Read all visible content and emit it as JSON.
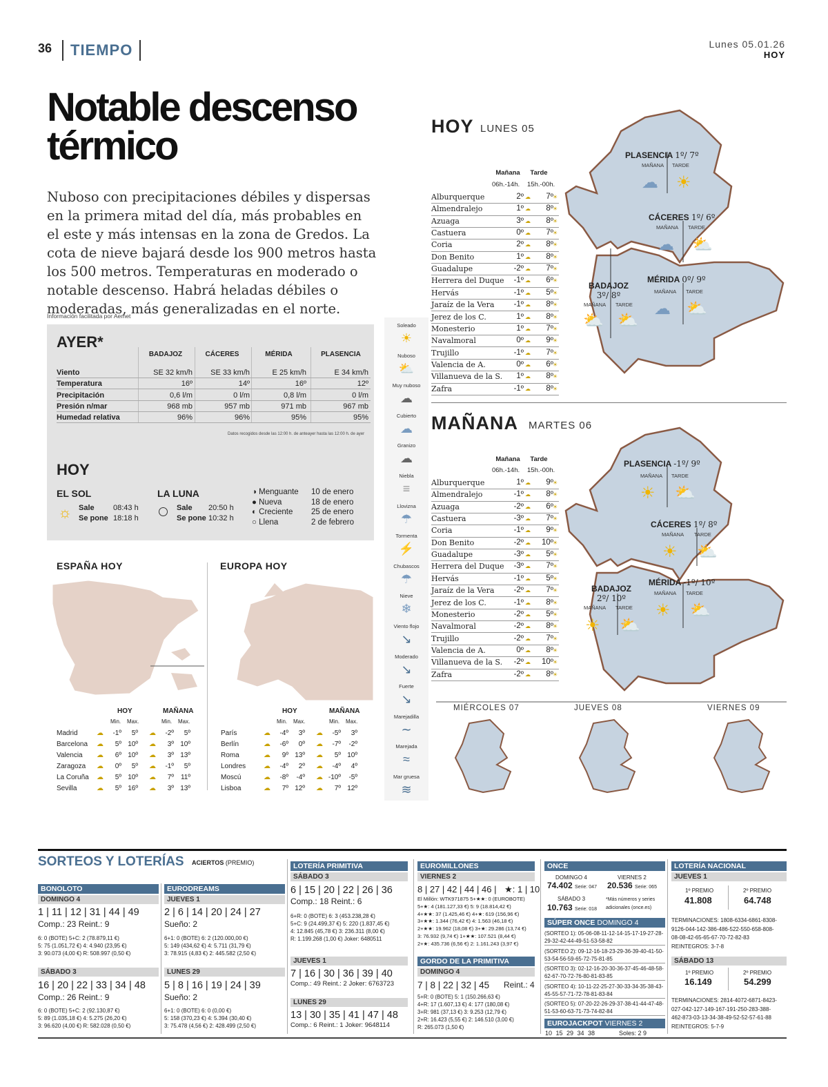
{
  "header": {
    "page": "36",
    "section": "TIEMPO",
    "date": "Lunes 05.01.26",
    "paper": "HOY"
  },
  "headline": {
    "line1": "Notable descenso",
    "line2": "térmico"
  },
  "lead": "Nuboso con precipitaciones débiles y dispersas en la primera mitad del día, más probables en el este y más intensas en la zona de Gredos. La cota de nieve bajará desde los 900 metros hasta los 500 metros. Temperaturas en moderado o notable descenso. Habrá heladas débiles o moderadas, más generalizadas en el norte.",
  "credit": "Información facilitada por Aemet",
  "ayer": {
    "title": "AYER*",
    "cities": [
      "BADAJOZ",
      "CÁCERES",
      "MÉRIDA",
      "PLASENCIA"
    ],
    "rows": [
      {
        "label": "Viento",
        "values": [
          "SE 32 km/h",
          "SE 33 km/h",
          "E 25 km/h",
          "E 34 km/h"
        ]
      },
      {
        "label": "Temperatura",
        "values": [
          "16º",
          "14º",
          "16º",
          "12º"
        ]
      },
      {
        "label": "Precipitación",
        "values": [
          "0,6 l/m",
          "0 l/m",
          "0,8 l/m",
          "0 l/m"
        ]
      },
      {
        "label": "Presión n/mar",
        "values": [
          "968 mb",
          "957 mb",
          "971 mb",
          "967 mb"
        ]
      },
      {
        "label": "Humedad relativa",
        "values": [
          "96%",
          "96%",
          "95%",
          "95%"
        ]
      }
    ],
    "note": "Datos recogidos desde las 12:00 h. de anteayer hasta las 12:00 h. de ayer"
  },
  "hoy_box": {
    "title": "HOY",
    "sol": {
      "title": "EL SOL",
      "sale_label": "Sale",
      "sale": "08:43 h",
      "pone_label": "Se pone",
      "pone": "18:18 h"
    },
    "luna": {
      "title": "LA LUNA",
      "sale_label": "Sale",
      "sale": "20:50 h",
      "pone_label": "Se pone",
      "pone": "10:32 h"
    },
    "phases": [
      {
        "name": "Menguante",
        "date": "10 de enero",
        "sym": "◑"
      },
      {
        "name": "Nueva",
        "date": "18 de enero",
        "sym": "●"
      },
      {
        "name": "Creciente",
        "date": "25 de enero",
        "sym": "◐"
      },
      {
        "name": "Llena",
        "date": "2 de febrero",
        "sym": "○"
      }
    ]
  },
  "espana": {
    "title": "ESPAÑA HOY",
    "hoy": "HOY",
    "manana": "MAÑANA",
    "min": "Min.",
    "max": "Max.",
    "cities": [
      {
        "name": "Madrid",
        "h": [
          "-1º",
          "5º"
        ],
        "m": [
          "-2º",
          "5º"
        ]
      },
      {
        "name": "Barcelona",
        "h": [
          "5º",
          "10º"
        ],
        "m": [
          "3º",
          "10º"
        ]
      },
      {
        "name": "Valencia",
        "h": [
          "6º",
          "10º"
        ],
        "m": [
          "3º",
          "13º"
        ]
      },
      {
        "name": "Zaragoza",
        "h": [
          "0º",
          "5º"
        ],
        "m": [
          "-1º",
          "5º"
        ]
      },
      {
        "name": "La Coruña",
        "h": [
          "5º",
          "10º"
        ],
        "m": [
          "7º",
          "11º"
        ]
      },
      {
        "name": "Sevilla",
        "h": [
          "5º",
          "16º"
        ],
        "m": [
          "3º",
          "13º"
        ]
      }
    ]
  },
  "europa": {
    "title": "EUROPA HOY",
    "hoy": "HOY",
    "manana": "MAÑANA",
    "min": "Min.",
    "max": "Max.",
    "cities": [
      {
        "name": "París",
        "h": [
          "-4º",
          "3º"
        ],
        "m": [
          "-5º",
          "3º"
        ]
      },
      {
        "name": "Berlín",
        "h": [
          "-6º",
          "0º"
        ],
        "m": [
          "-7º",
          "-2º"
        ]
      },
      {
        "name": "Roma",
        "h": [
          "9º",
          "13º"
        ],
        "m": [
          "5º",
          "10º"
        ]
      },
      {
        "name": "Londres",
        "h": [
          "-4º",
          "2º"
        ],
        "m": [
          "-4º",
          "4º"
        ]
      },
      {
        "name": "Moscú",
        "h": [
          "-8º",
          "-4º"
        ],
        "m": [
          "-10º",
          "-5º"
        ]
      },
      {
        "name": "Lisboa",
        "h": [
          "7º",
          "12º"
        ],
        "m": [
          "7º",
          "12º"
        ]
      }
    ]
  },
  "legend": [
    "Soleado",
    "Nuboso",
    "Muy nuboso",
    "Cubierto",
    "Granizo",
    "Niebla",
    "Llovizna",
    "Tormenta",
    "Chubascos",
    "Nieve",
    "Viento flojo",
    "Moderado",
    "Fuerte",
    "Marejadilla",
    "Marejada",
    "Mar gruesa"
  ],
  "hoy_fc": {
    "title": "HOY",
    "sub": "LUNES 05",
    "h1": "Mañana",
    "h2": "Tarde",
    "h1b": "06h.-14h.",
    "h2b": "15h.-00h.",
    "rows": [
      {
        "t": "Alburquerque",
        "m": "2º",
        "a": "7º"
      },
      {
        "t": "Almendralejo",
        "m": "1º",
        "a": "8º"
      },
      {
        "t": "Azuaga",
        "m": "3º",
        "a": "8º"
      },
      {
        "t": "Castuera",
        "m": "0º",
        "a": "7º"
      },
      {
        "t": "Coria",
        "m": "2º",
        "a": "8º"
      },
      {
        "t": "Don Benito",
        "m": "1º",
        "a": "8º"
      },
      {
        "t": "Guadalupe",
        "m": "-2º",
        "a": "7º"
      },
      {
        "t": "Herrera del Duque",
        "m": "-1º",
        "a": "6º"
      },
      {
        "t": "Hervás",
        "m": "-1º",
        "a": "5º"
      },
      {
        "t": "Jaraíz de la Vera",
        "m": "-1º",
        "a": "8º"
      },
      {
        "t": "Jerez de los C.",
        "m": "1º",
        "a": "8º"
      },
      {
        "t": "Monesterio",
        "m": "1º",
        "a": "7º"
      },
      {
        "t": "Navalmoral",
        "m": "0º",
        "a": "9º"
      },
      {
        "t": "Trujillo",
        "m": "-1º",
        "a": "7º"
      },
      {
        "t": "Valencia de A.",
        "m": "0º",
        "a": "6º"
      },
      {
        "t": "Villanueva de la S.",
        "m": "1º",
        "a": "8º"
      },
      {
        "t": "Zafra",
        "m": "-1º",
        "a": "8º"
      }
    ],
    "map": [
      {
        "city": "PLASENCIA",
        "temps": "1º/ 7º"
      },
      {
        "city": "CÁCERES",
        "temps": "1º/ 6º"
      },
      {
        "city": "BADAJOZ",
        "temps": "3º/ 8º"
      },
      {
        "city": "MÉRIDA",
        "temps": "0º/ 9º"
      }
    ]
  },
  "man_fc": {
    "title": "MAÑANA",
    "sub": "MARTES 06",
    "h1": "Mañana",
    "h2": "Tarde",
    "h1b": "06h.-14h.",
    "h2b": "15h.-00h.",
    "rows": [
      {
        "t": "Alburquerque",
        "m": "1º",
        "a": "9º"
      },
      {
        "t": "Almendralejo",
        "m": "-1º",
        "a": "8º"
      },
      {
        "t": "Azuaga",
        "m": "-2º",
        "a": "6º"
      },
      {
        "t": "Castuera",
        "m": "-3º",
        "a": "7º"
      },
      {
        "t": "Coria",
        "m": "-1º",
        "a": "9º"
      },
      {
        "t": "Don Benito",
        "m": "-2º",
        "a": "10º"
      },
      {
        "t": "Guadalupe",
        "m": "-3º",
        "a": "5º"
      },
      {
        "t": "Herrera del Duque",
        "m": "-3º",
        "a": "7º"
      },
      {
        "t": "Hervás",
        "m": "-1º",
        "a": "5º"
      },
      {
        "t": "Jaraíz de la Vera",
        "m": "-2º",
        "a": "7º"
      },
      {
        "t": "Jerez de los C.",
        "m": "-1º",
        "a": "8º"
      },
      {
        "t": "Monesterio",
        "m": "-2º",
        "a": "5º"
      },
      {
        "t": "Navalmoral",
        "m": "-2º",
        "a": "8º"
      },
      {
        "t": "Trujillo",
        "m": "-2º",
        "a": "7º"
      },
      {
        "t": "Valencia de A.",
        "m": "0º",
        "a": "8º"
      },
      {
        "t": "Villanueva de la S.",
        "m": "-2º",
        "a": "10º"
      },
      {
        "t": "Zafra",
        "m": "-2º",
        "a": "8º"
      }
    ],
    "map": [
      {
        "city": "PLASENCIA",
        "temps": "-1º/ 9º"
      },
      {
        "city": "CÁCERES",
        "temps": "1º/ 8º"
      },
      {
        "city": "BADAJOZ",
        "temps": "2º/ 10º"
      },
      {
        "city": "MÉRIDA",
        "temps": "-1º/ 10º"
      }
    ]
  },
  "map_labels": {
    "manana": "MAÑANA",
    "tarde": "TARDE"
  },
  "days": [
    "MIÉRCOLES 07",
    "JUEVES 08",
    "VIERNES 09"
  ],
  "lottery": {
    "title": "SORTEOS Y LOTERÍAS",
    "subtitle_a": "ACIERTOS",
    "subtitle_b": "(PREMIO)",
    "bonoloto": {
      "name": "BONOLOTO",
      "d1": "DOMINGO 4",
      "n1": "1 | 11 | 12 | 31 | 44 | 49",
      "c1": "Comp.: 23 Reint.: 9",
      "x1": [
        "6: 0 (BOTE) 5+C: 2 (78.879,11 €)",
        "5: 75 (1.051,72 €) 4: 4.940 (23,95 €)",
        "3: 90.073 (4,00 €) R: 508.997 (0,50 €)"
      ],
      "d2": "SÁBADO 3",
      "n2": "16 | 20 | 22 | 33 | 34 | 48",
      "c2": "Comp.: 26 Reint.: 9",
      "x2": [
        "6: 0 (BOTE) 5+C: 2 (92.130,87 €)",
        "5: 89 (1.035,18 €) 4: 5.275 (26,20 €)",
        "3: 96.620 (4,00 €) R: 582.028 (0,50 €)"
      ]
    },
    "eurodreams": {
      "name": "EURODREAMS",
      "d1": "JUEVES 1",
      "n1": "2 | 6 | 14 | 20 | 24 | 27",
      "c1": "Sueño: 2",
      "x1": [
        "6+1: 0 (BOTE) 6: 2 (120.000,00 €)",
        "5: 149 (434,62 €) 4: 5.711 (31,79 €)",
        "3: 78.915 (4,83 €) 2: 445.582 (2,50 €)"
      ],
      "d2": "LUNES 29",
      "n2": "5 | 8 | 16 | 19 | 24 | 39",
      "c2": "Sueño: 2",
      "x2": [
        "6+1: 0 (BOTE) 6: 0 (0,00 €)",
        "5: 158 (370,23 €) 4: 5.394 (30,40 €)",
        "3: 75.478 (4,56 €) 2: 428.499 (2,50 €)"
      ]
    },
    "primitiva": {
      "name": "LOTERÍA PRIMITIVA",
      "d1": "SÁBADO 3",
      "n1": "6 | 15 | 20 | 22 | 26 | 36",
      "c1": "Comp.: 18 Reint.: 6",
      "x1": [
        "6+R: 0 (BOTE) 6: 3 (453.238,28 €)",
        "5+C: 9 (24.499,37 €) 5: 220 (1.837,45 €)",
        "4: 12.845 (45,78 €) 3: 236.311 (8,00 €)",
        "R: 1.199.268 (1,00 €) Joker: 6480511"
      ],
      "d2": "JUEVES 1",
      "n2": "7 | 16 | 30 | 36 | 39 | 40",
      "c2": "Comp.: 49 Reint.: 2 Joker: 6763723",
      "d3": "LUNES 29",
      "n3": "13 | 30 | 35 | 41 | 47 | 48",
      "c3": "Comp.: 6 Reint.: 1 Joker: 9648114"
    },
    "euromillones": {
      "name": "EUROMILLONES",
      "d1": "VIERNES 2",
      "n1": "8 | 27 | 42 | 44 | 46 |",
      "stars": "★: 1 | 10",
      "x1": [
        "El Millón: WTK971875 5+★★: 0 (EUROBOTE)",
        "5+★: 4 (181.127,33 €) 5: 9 (18.814,42 €)",
        "4+★★: 37 (1.425,46 €) 4+★: 619 (156,96 €)",
        "3+★★: 1.344 (76,42 €) 4: 1.563 (46,18 €)",
        "2+★★: 19.962 (18,08 €) 3+★: 29.286 (13,74 €)",
        "3: 76.932 (9,74 €) 1+★★: 107.521 (8,44 €)",
        "2+★: 435.736 (6,56 €) 2: 1.161.243 (3,97 €)"
      ],
      "gordo_name": "GORDO DE LA PRIMITIVA",
      "d2": "DOMINGO 4",
      "n2": "7 | 8 | 22 | 32 | 45",
      "reint": "Reint.: 4",
      "x2": [
        "5+R: 0 (BOTE) 5: 1 (150.266,63 €)",
        "4+R: 17 (1.607,13 €) 4: 177 (180,08 €)",
        "3+R: 981 (37,13 €) 3: 9.253 (12,79 €)",
        "2+R: 16.423 (5,55 €) 2: 146.510 (3,00 €)",
        "R: 265.073 (1,50 €)"
      ]
    },
    "once": {
      "name": "ONCE",
      "d1": "DOMINGO 4",
      "n1": "74.402",
      "s1": "Serie: 047",
      "d2": "VIERNES 2",
      "n2": "20.536",
      "s2": "Serie: 065",
      "d3": "SÁBADO 3",
      "n3": "10.763",
      "s3": "Serie: 018",
      "note": "*Más números y series adicionales (once.es)",
      "super": "SÚPER ONCE",
      "super_day": "DOMINGO 4",
      "sorteos": [
        "(SORTEO 1): 05-06-08-11-12-14-15-17-19-27-28-29-32-42-44-49-51-53-58-82",
        "(SORTEO 2): 09-12-16-18-23-29-36-39-40-41-50-53-54-56-59-65-72-75-81-85",
        "(SORTEO 3): 02-12-16-20-30-36-37-45-46-48-58-62-67-70-72-76-80-81-83-85",
        "(SORTEO 4): 10-11-22-25-27-30-33-34-35-38-43-45-55-57-71-72-78-81-83-84",
        "(SORTEO 5): 07-20-22-26-29-37-38-41-44-47-48-51-53-60-63-71-73-74-82-84"
      ],
      "euroj": "EUROJACKPOT",
      "euroj_day": "VIERNES 2",
      "euroj_nums": "10 15 29 34 38",
      "euroj_soles": "Soles: 2 9"
    },
    "nacional": {
      "name": "LOTERÍA NACIONAL",
      "d1": "JUEVES 1",
      "p1": "1º PREMIO",
      "v1": "41.808",
      "p2": "2º PREMIO",
      "v2": "64.748",
      "t1": "TERMINACIONES: 1808-6334-6861-8308-9126-044-142-386-486-522-550-658-808-08-08-42-65-65-67-70-72-82-83 REINTEGROS: 3-7-8",
      "d2": "SÁBADO 13",
      "v3": "16.149",
      "v4": "54.299",
      "t2": "TERMINACIONES: 2814-4072-6871-8423-027-042-127-149-167-191-250-283-388-462-873-03-13-34-38-49-52-52-57-61-88 REINTEGROS: 5-7-9"
    }
  },
  "colors": {
    "accent": "#4a6f91",
    "map_fill": "#c6d3e0",
    "map_border": "#8a5a44",
    "sun": "#f0b400"
  }
}
